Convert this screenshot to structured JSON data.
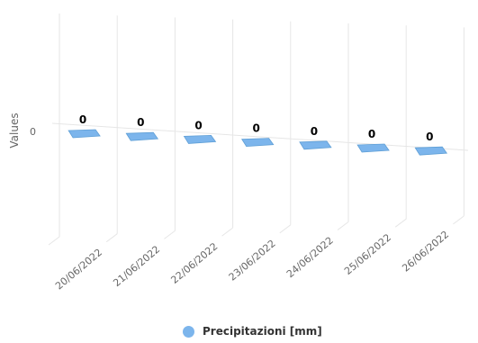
{
  "chart_data": {
    "type": "bar",
    "categories": [
      "20/06/2022",
      "21/06/2022",
      "22/06/2022",
      "23/06/2022",
      "24/06/2022",
      "25/06/2022",
      "26/06/2022"
    ],
    "series": [
      {
        "name": "Precipitazioni [mm]",
        "values": [
          0,
          0,
          0,
          0,
          0,
          0,
          0
        ],
        "color": "#7cb5ec"
      }
    ],
    "ylabel": "Values",
    "yticks": [
      0
    ],
    "data_labels": true,
    "grid": true,
    "legend": "bottom-center",
    "3d": true
  }
}
